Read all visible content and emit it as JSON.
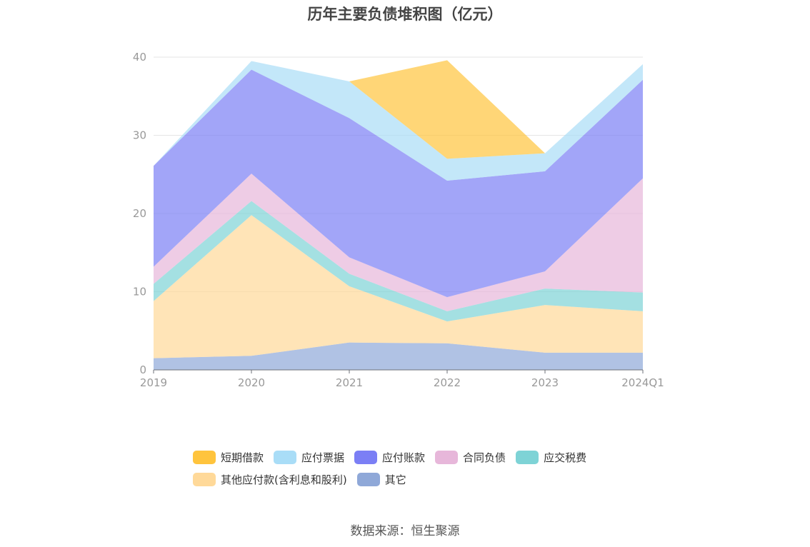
{
  "title": "历年主要负债堆积图（亿元）",
  "source": "数据来源：恒生聚源",
  "chart_data": {
    "type": "area",
    "stacked": true,
    "title": "历年主要负债堆积图（亿元）",
    "categories": [
      "2019",
      "2020",
      "2021",
      "2022",
      "2023",
      "2024Q1"
    ],
    "ylim": [
      0,
      40
    ],
    "yticks": [
      "0",
      "10",
      "20",
      "30",
      "40"
    ],
    "grid": true,
    "legend_position": "bottom",
    "series": [
      {
        "name": "其它",
        "color": "#8FA8D8",
        "values": [
          1.5,
          1.8,
          3.5,
          3.4,
          2.2,
          2.2
        ]
      },
      {
        "name": "其他应付款(含利息和股利)",
        "color": "#FFD999",
        "values": [
          7.3,
          18.0,
          7.2,
          2.8,
          6.1,
          5.3
        ]
      },
      {
        "name": "应交税费",
        "color": "#7ED3D6",
        "values": [
          2.2,
          1.8,
          1.6,
          1.3,
          2.1,
          2.4
        ]
      },
      {
        "name": "合同负债",
        "color": "#E7B7DA",
        "values": [
          2.2,
          3.5,
          2.1,
          1.8,
          2.2,
          14.6
        ]
      },
      {
        "name": "应付账款",
        "color": "#7B7FF5",
        "values": [
          12.9,
          13.3,
          17.8,
          14.9,
          12.8,
          12.6
        ]
      },
      {
        "name": "应付票据",
        "color": "#A9DDF7",
        "values": [
          0.0,
          1.1,
          4.7,
          2.8,
          2.3,
          2.0
        ]
      },
      {
        "name": "短期借款",
        "color": "#FFC43D",
        "values": [
          0.0,
          0.0,
          0.0,
          12.6,
          0.0,
          0.0
        ]
      }
    ]
  },
  "legend": {
    "row1": [
      {
        "label": "短期借款",
        "color": "#FFC43D"
      },
      {
        "label": "应付票据",
        "color": "#A9DDF7"
      },
      {
        "label": "应付账款",
        "color": "#7B7FF5"
      },
      {
        "label": "合同负债",
        "color": "#E7B7DA"
      },
      {
        "label": "应交税费",
        "color": "#7ED3D6"
      }
    ],
    "row2": [
      {
        "label": "其他应付款(含利息和股利)",
        "color": "#FFD999"
      },
      {
        "label": "其它",
        "color": "#8FA8D8"
      }
    ]
  }
}
